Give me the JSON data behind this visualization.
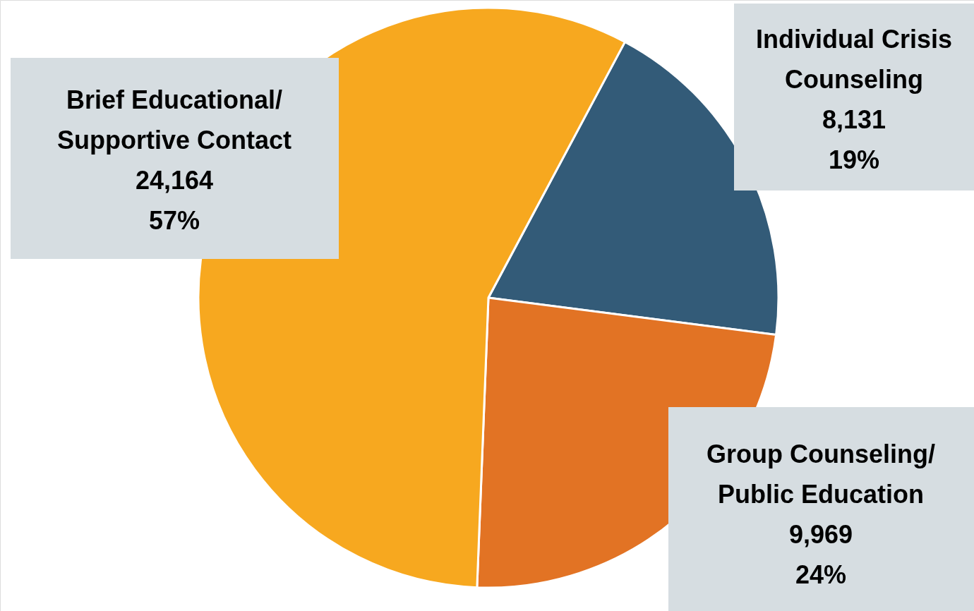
{
  "chart_data": {
    "type": "pie",
    "categories": [
      "Individual Crisis\nCounseling",
      "Group Counseling/\nPublic Education",
      "Brief Educational/\nSupportive Contact"
    ],
    "values": [
      8131,
      9969,
      24164
    ],
    "colors": [
      "#335b78",
      "#e27324",
      "#f7a81f"
    ],
    "value_labels": [
      "8,131\n19%",
      "9,969\n24%",
      "24,164\n57%"
    ]
  }
}
